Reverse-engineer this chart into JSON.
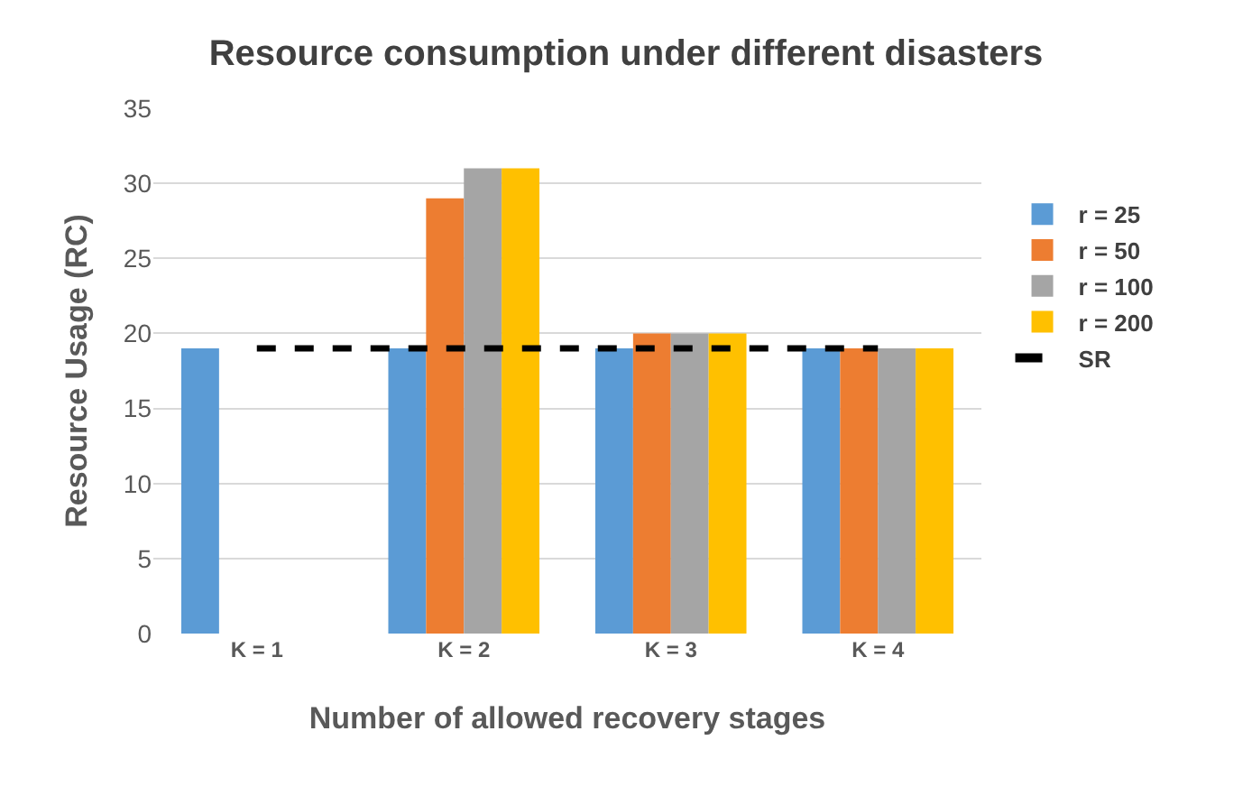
{
  "chart_data": {
    "type": "bar",
    "title": "Resource consumption under different disasters",
    "xlabel": "Number of allowed recovery stages",
    "ylabel": "Resource Usage (RC)",
    "categories": [
      "K = 1",
      "K = 2",
      "K = 3",
      "K = 4"
    ],
    "series": [
      {
        "name": "r = 25",
        "color": "#5b9bd5",
        "values": [
          19,
          19,
          19,
          19
        ]
      },
      {
        "name": "r = 50",
        "color": "#ed7d31",
        "values": [
          null,
          29,
          20,
          19
        ]
      },
      {
        "name": "r = 100",
        "color": "#a5a5a5",
        "values": [
          null,
          31,
          20,
          19
        ]
      },
      {
        "name": "r = 200",
        "color": "#ffc000",
        "values": [
          null,
          31,
          20,
          19
        ]
      },
      {
        "name": "SR",
        "type": "line",
        "color": "#000000",
        "line_style": "dashed",
        "marker": "none",
        "values": [
          19,
          19,
          19,
          19
        ]
      }
    ],
    "ylim": [
      0,
      35
    ],
    "yticks": [
      0,
      5,
      10,
      15,
      20,
      25,
      30,
      35
    ],
    "grid": "y",
    "legend": "right"
  }
}
